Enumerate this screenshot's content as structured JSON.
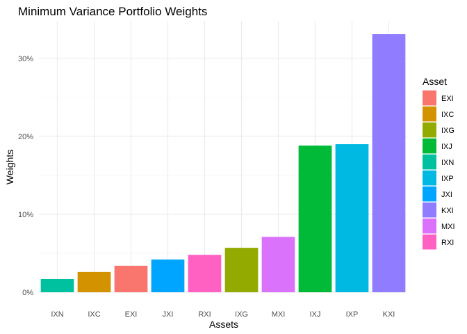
{
  "chart_data": {
    "type": "bar",
    "title": "Minimum Variance Portfolio Weights",
    "xlabel": "Assets",
    "ylabel": "Weights",
    "categories": [
      "IXN",
      "IXC",
      "EXI",
      "JXI",
      "RXI",
      "IXG",
      "MXI",
      "IXJ",
      "IXP",
      "KXI"
    ],
    "values": [
      1.7,
      2.6,
      3.4,
      4.2,
      4.8,
      5.7,
      7.1,
      18.8,
      19.0,
      33.1
    ],
    "y_ticks": [
      0,
      10,
      20,
      30
    ],
    "y_tick_labels": [
      "0%",
      "10%",
      "20%",
      "30%"
    ],
    "ylim": [
      0,
      34.8
    ],
    "grid": true,
    "legend": {
      "title": "Asset",
      "placement": "right",
      "entries": [
        "EXI",
        "IXC",
        "IXG",
        "IXJ",
        "IXN",
        "IXP",
        "JXI",
        "KXI",
        "MXI",
        "RXI"
      ]
    },
    "colors": {
      "EXI": "#F8766D",
      "IXC": "#D39200",
      "IXG": "#93AA00",
      "IXJ": "#00BA38",
      "IXN": "#00C19F",
      "IXP": "#00B9E3",
      "JXI": "#00A5FF",
      "KXI": "#8F7CFF",
      "MXI": "#DB72FB",
      "RXI": "#FF61C3"
    }
  }
}
